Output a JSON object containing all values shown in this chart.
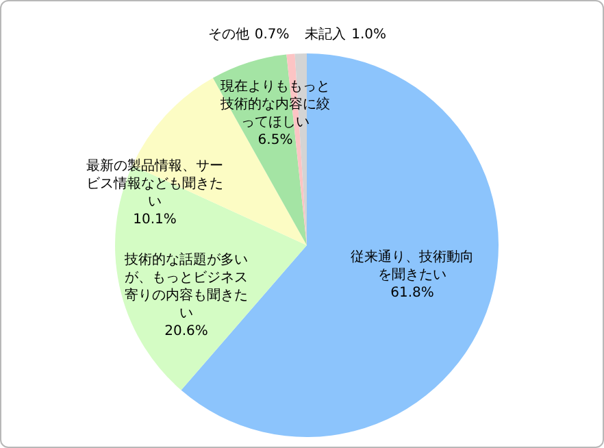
{
  "chart_data": {
    "type": "pie",
    "categories": [
      "従来通り、技術動向を聞きたい",
      "技術的な話題が多いが、もっとビジネス寄りの内容も聞きたい",
      "最新の製品情報、サービス情報なども聞きたい",
      "現在よりももっと技術的な内容に絞ってほしい",
      "その他",
      "未記入"
    ],
    "values": [
      61.8,
      20.6,
      10.1,
      6.5,
      0.7,
      1.0
    ],
    "value_labels": [
      "61.8%",
      "20.6%",
      "10.1%",
      "6.5%",
      "0.7%",
      "1.0%"
    ],
    "colors": [
      "#8cc4fc",
      "#d4fcc4",
      "#fcfcc4",
      "#a4e4a4",
      "#fcc4c4",
      "#d4d4d4"
    ]
  }
}
